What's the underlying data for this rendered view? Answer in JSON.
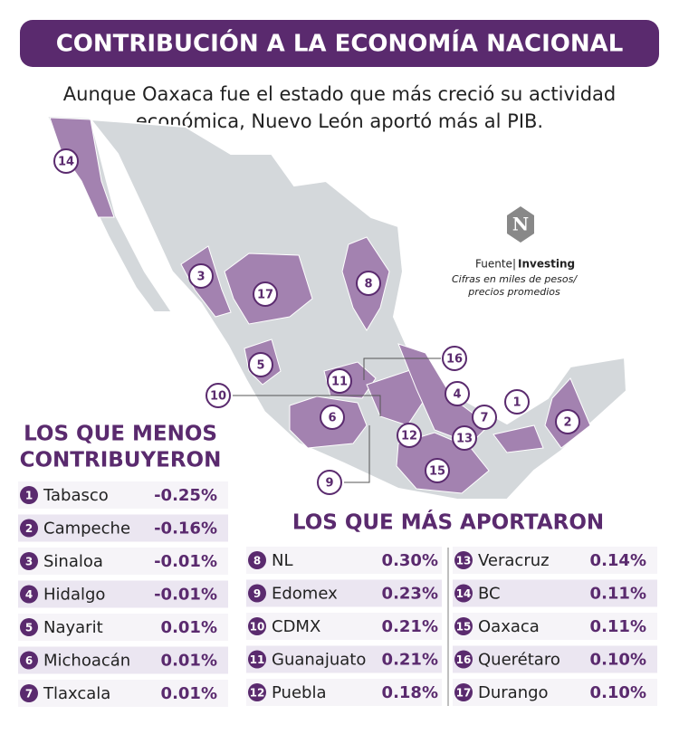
{
  "header": {
    "title": "CONTRIBUCIÓN A LA ECONOMÍA NACIONAL",
    "subtitle": [
      "Aunque Oaxaca fue el estado que más creció su actividad",
      "económica, Nuevo León aportó más al PIB."
    ]
  },
  "source": {
    "logo": "N",
    "label": "Fuente|",
    "name": "Investing",
    "note": [
      "Cifras en miles de pesos/",
      "precios promedios"
    ]
  },
  "least": {
    "title": [
      "LOS QUE MENOS",
      "CONTRIBUYERON"
    ],
    "rows": [
      {
        "rank": 1,
        "state": "Tabasco",
        "value": "-0.25%"
      },
      {
        "rank": 2,
        "state": "Campeche",
        "value": "-0.16%"
      },
      {
        "rank": 3,
        "state": "Sinaloa",
        "value": "-0.01%"
      },
      {
        "rank": 4,
        "state": "Hidalgo",
        "value": "-0.01%"
      },
      {
        "rank": 5,
        "state": "Nayarit",
        "value": "0.01%"
      },
      {
        "rank": 6,
        "state": "Michoacán",
        "value": "0.01%"
      },
      {
        "rank": 7,
        "state": "Tlaxcala",
        "value": "0.01%"
      }
    ]
  },
  "most": {
    "title": "LOS QUE MÁS APORTARON",
    "rows": [
      {
        "rank": 8,
        "state": "NL",
        "value": "0.30%"
      },
      {
        "rank": 9,
        "state": "Edomex",
        "value": "0.23%"
      },
      {
        "rank": 10,
        "state": "CDMX",
        "value": "0.21%"
      },
      {
        "rank": 11,
        "state": "Guanajuato",
        "value": "0.21%"
      },
      {
        "rank": 12,
        "state": "Puebla",
        "value": "0.18%"
      },
      {
        "rank": 13,
        "state": "Veracruz",
        "value": "0.14%"
      },
      {
        "rank": 14,
        "state": "BC",
        "value": "0.11%"
      },
      {
        "rank": 15,
        "state": "Oaxaca",
        "value": "0.11%"
      },
      {
        "rank": 16,
        "state": "Querétaro",
        "value": "0.10%"
      },
      {
        "rank": 17,
        "state": "Durango",
        "value": "0.10%"
      }
    ]
  }
}
